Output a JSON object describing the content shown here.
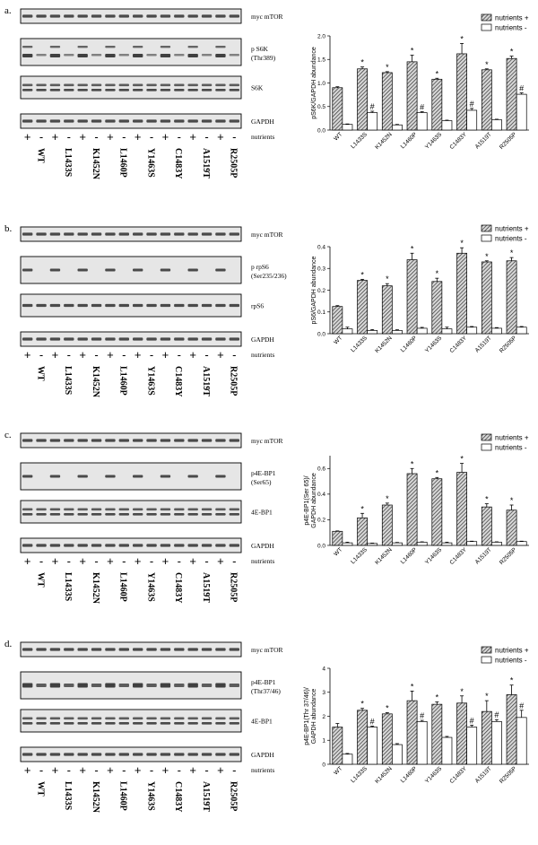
{
  "lanes": [
    "WT",
    "L1433S",
    "K1452N",
    "L1460P",
    "Y1463S",
    "C1483Y",
    "A1519T",
    "R2505P"
  ],
  "nutrient_signs": [
    "+",
    "-"
  ],
  "nutrients_label": "nutrients",
  "colors": {
    "band": "#2e2e2e",
    "blot_bg": "#e6e6e6",
    "bar_minus": "#ffffff"
  },
  "panels": [
    {
      "letter": "a.",
      "blots": [
        {
          "label": "myc mTOR",
          "pattern": "uniform"
        },
        {
          "label": "p S6K",
          "label2": "(Thr389)",
          "pattern": "phospho_s6k"
        },
        {
          "label": "S6K",
          "pattern": "double"
        },
        {
          "label": "GAPDH",
          "pattern": "uniform"
        }
      ]
    },
    {
      "letter": "b.",
      "blots": [
        {
          "label": "myc mTOR",
          "pattern": "uniform"
        },
        {
          "label": "p rpS6",
          "label2": "(Ser235/236)",
          "pattern": "plus_only"
        },
        {
          "label": "rpS6",
          "pattern": "uniform"
        },
        {
          "label": "GAPDH",
          "pattern": "uniform"
        }
      ]
    },
    {
      "letter": "c.",
      "blots": [
        {
          "label": "myc mTOR",
          "pattern": "uniform"
        },
        {
          "label": "p4E-BP1",
          "label2": "(Ser65)",
          "pattern": "plus_only"
        },
        {
          "label": "4E-BP1",
          "pattern": "double"
        },
        {
          "label": "GAPDH",
          "pattern": "uniform"
        }
      ]
    },
    {
      "letter": "d.",
      "blots": [
        {
          "label": "myc mTOR",
          "pattern": "uniform"
        },
        {
          "label": "p4E-BP1",
          "label2": "(Thr37/46)",
          "pattern": "phospho_thr"
        },
        {
          "label": "4E-BP1",
          "pattern": "double"
        },
        {
          "label": "GAPDH",
          "pattern": "uniform"
        }
      ]
    }
  ],
  "chart_data": [
    {
      "type": "bar",
      "categories": [
        "WT",
        "L1433S",
        "K1452N",
        "L1460P",
        "Y1463S",
        "C1483Y",
        "A1519T",
        "R2505P"
      ],
      "ylabel": "pS6K/GAPDH abundance",
      "ylim": [
        0,
        2.0
      ],
      "yticks": [
        "0.0",
        "0.5",
        "1.0",
        "1.5",
        "2.0"
      ],
      "tick_values": [
        0,
        0.5,
        1.0,
        1.5,
        2.0
      ],
      "legend": "top-right",
      "series": [
        {
          "name": "nutrients +",
          "values": [
            0.9,
            1.3,
            1.22,
            1.45,
            1.08,
            1.62,
            1.28,
            1.52
          ],
          "errors": [
            0.02,
            0.04,
            0.02,
            0.14,
            0.02,
            0.22,
            0.02,
            0.05
          ],
          "sig": [
            "",
            "*",
            "*",
            "*",
            "*",
            "*",
            "*",
            "*"
          ]
        },
        {
          "name": "nutrients -",
          "values": [
            0.12,
            0.37,
            0.11,
            0.37,
            0.2,
            0.42,
            0.22,
            0.76
          ],
          "errors": [
            0.01,
            0.03,
            0.01,
            0.02,
            0.01,
            0.04,
            0.01,
            0.03
          ],
          "sig": [
            "",
            "#",
            "",
            "#",
            "",
            "#",
            "",
            "#"
          ]
        }
      ]
    },
    {
      "type": "bar",
      "categories": [
        "WT",
        "L1433S",
        "K1452N",
        "L1460P",
        "Y1463S",
        "C1483Y",
        "A1519T",
        "R2505P"
      ],
      "ylabel": "pS6/GAPDH abundance",
      "ylim": [
        0,
        0.4
      ],
      "yticks": [
        "0.0",
        "0.1",
        "0.2",
        "0.3",
        "0.4"
      ],
      "tick_values": [
        0,
        0.1,
        0.2,
        0.3,
        0.4
      ],
      "legend": "top-right",
      "series": [
        {
          "name": "nutrients +",
          "values": [
            0.125,
            0.245,
            0.22,
            0.34,
            0.24,
            0.37,
            0.33,
            0.335
          ],
          "errors": [
            0.004,
            0.005,
            0.01,
            0.03,
            0.015,
            0.025,
            0.005,
            0.015
          ],
          "sig": [
            "",
            "*",
            "*",
            "*",
            "*",
            "*",
            "*",
            "*"
          ]
        },
        {
          "name": "nutrients -",
          "values": [
            0.022,
            0.015,
            0.015,
            0.025,
            0.022,
            0.03,
            0.025,
            0.03
          ],
          "errors": [
            0.008,
            0.004,
            0.003,
            0.004,
            0.008,
            0.003,
            0.003,
            0.003
          ],
          "sig": [
            "",
            "",
            "",
            "",
            "",
            "",
            "",
            ""
          ]
        }
      ]
    },
    {
      "type": "bar",
      "categories": [
        "WT",
        "L1433S",
        "K1452N",
        "L1460P",
        "Y1463S",
        "C1483Y",
        "A1519T",
        "R2505P"
      ],
      "ylabel": "p4E-BP1(Ser 65)/ GAPDH abundance",
      "ylim": [
        0,
        0.7
      ],
      "yticks": [
        "0.0",
        "0.2",
        "0.4",
        "0.6"
      ],
      "tick_values": [
        0,
        0.2,
        0.4,
        0.6
      ],
      "legend": "top-right",
      "series": [
        {
          "name": "nutrients +",
          "values": [
            0.11,
            0.215,
            0.315,
            0.56,
            0.52,
            0.57,
            0.3,
            0.275
          ],
          "errors": [
            0.003,
            0.035,
            0.015,
            0.04,
            0.01,
            0.07,
            0.025,
            0.04
          ],
          "sig": [
            "",
            "*",
            "*",
            "*",
            "*",
            "*",
            "*",
            "*"
          ]
        },
        {
          "name": "nutrients -",
          "values": [
            0.02,
            0.015,
            0.02,
            0.025,
            0.02,
            0.03,
            0.025,
            0.03
          ],
          "errors": [
            0.005,
            0.003,
            0.003,
            0.003,
            0.005,
            0.003,
            0.003,
            0.003
          ],
          "sig": [
            "",
            "",
            "",
            "",
            "",
            "",
            "",
            ""
          ]
        }
      ]
    },
    {
      "type": "bar",
      "categories": [
        "WT",
        "L1433S",
        "K1452N",
        "L1460P",
        "Y1463S",
        "C1483Y",
        "A1519T",
        "R2505P"
      ],
      "ylabel": "p4E-BP1(Thr 37/46)/ GAPDH abundance",
      "ylim": [
        0,
        4
      ],
      "yticks": [
        "0",
        "1",
        "2",
        "3",
        "4"
      ],
      "tick_values": [
        0,
        1,
        2,
        3,
        4
      ],
      "legend": "top-right",
      "series": [
        {
          "name": "nutrients +",
          "values": [
            1.55,
            2.25,
            2.1,
            2.65,
            2.5,
            2.55,
            2.2,
            2.9
          ],
          "errors": [
            0.15,
            0.08,
            0.05,
            0.4,
            0.1,
            0.3,
            0.45,
            0.4
          ],
          "sig": [
            "",
            "*",
            "*",
            "*",
            "*",
            "*",
            "*",
            "*"
          ]
        },
        {
          "name": "nutrients -",
          "values": [
            0.42,
            1.55,
            0.82,
            1.78,
            1.12,
            1.55,
            1.78,
            1.95
          ],
          "errors": [
            0.03,
            0.04,
            0.04,
            0.05,
            0.04,
            0.08,
            0.08,
            0.3
          ],
          "sig": [
            "",
            "#",
            "",
            "#",
            "",
            "#",
            "#",
            "#"
          ]
        }
      ]
    }
  ]
}
